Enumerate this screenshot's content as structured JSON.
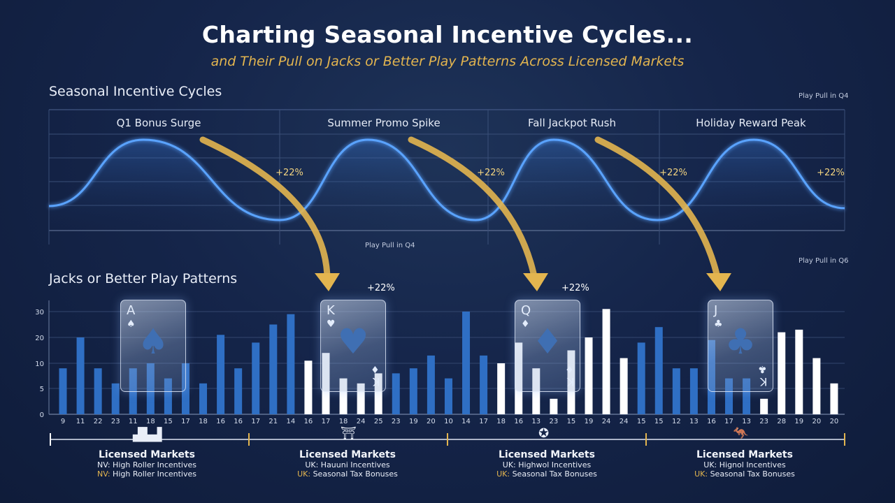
{
  "header": {
    "title": "Charting Seasonal Incentive Cycles...",
    "subtitle": "and Their Pull on Jacks or Better Play Patterns Across Licensed Markets"
  },
  "sections": {
    "top": "Seasonal Incentive Cycles",
    "bottom": "Jacks or Better Play Patterns"
  },
  "annotations": {
    "play_pull_q4_top_right": "Play Pull in Q4",
    "play_pull_q4_mid": "Play Pull in Q4",
    "play_pull_q6": "Play Pull in Q6"
  },
  "cycles": [
    {
      "label": "Q1 Bonus Surge",
      "pull": "+22%"
    },
    {
      "label": "Summer Promo Spike",
      "pull": "+22%"
    },
    {
      "label": "Fall Jackpot Rush",
      "pull": "+22%"
    },
    {
      "label": "Holiday Reward Peak",
      "pull": "+22%"
    }
  ],
  "bar_pulls": [
    "+22%",
    "+22%"
  ],
  "cards": [
    {
      "rank": "A",
      "suit": "♠",
      "rank_br": "",
      "suit_br": ""
    },
    {
      "rank": "K",
      "suit": "♥",
      "rank_br": "K",
      "suit_br": "♦"
    },
    {
      "rank": "Q",
      "suit": "♦",
      "rank_br": "K",
      "suit_br": "♦"
    },
    {
      "rank": "J",
      "suit": "♣",
      "rank_br": "K",
      "suit_br": "♣"
    }
  ],
  "markets": [
    {
      "title": "Licensed Markets",
      "line1": "NV: High Roller Incentives",
      "prefix2": "NV:",
      "line2": " High Roller Incentives",
      "icon": "city-skyline-icon",
      "glyph": "▟▙▟"
    },
    {
      "title": "Licensed Markets",
      "line1": "UK: Hauuni Incentives",
      "prefix2": "UK:",
      "line2": " Seasonal Tax Bonuses",
      "icon": "pagoda-icon",
      "glyph": "⛩"
    },
    {
      "title": "Licensed Markets",
      "line1": "UK: Highwol Incentives",
      "prefix2": "UK:",
      "line2": " Seasonal Tax Bonuses",
      "icon": "crest-icon",
      "glyph": "✪"
    },
    {
      "title": "Licensed Markets",
      "line1": "UK: Hignol Incentives",
      "prefix2": "UK:",
      "line2": " Seasonal Tax Bonuses",
      "icon": "kangaroo-icon",
      "glyph": "🦘"
    }
  ],
  "colors": {
    "wave": "#5aa3ff",
    "blue_bar": "#2f6fc4",
    "white_bar": "#ffffff",
    "arrow_gold": "#e3b54f",
    "accent": "#e3b54f"
  },
  "chart_data": [
    {
      "type": "line",
      "title": "Seasonal Incentive Cycles",
      "categories": [
        "Q1 Bonus Surge",
        "Summer Promo Spike",
        "Fall Jackpot Rush",
        "Holiday Reward Peak"
      ],
      "series": [
        {
          "name": "",
          "values": [
            1,
            1,
            1,
            1
          ]
        }
      ],
      "annotations": [
        "+22%",
        "+22%",
        "+22%",
        "+22%"
      ],
      "grid": true
    },
    {
      "type": "bar",
      "title": "Jacks or Better Play Patterns",
      "y_ticks": [
        0,
        5,
        10,
        20,
        30
      ],
      "ylim": [
        0,
        30
      ],
      "x_tick_labels": [
        "9",
        "11",
        "22",
        "23",
        "11",
        "18",
        "15",
        "17",
        "18",
        "16",
        "16",
        "17",
        "21",
        "14",
        "16",
        "17",
        "18",
        "24",
        "25",
        "23",
        "19",
        "20",
        "10",
        "14",
        "17",
        "18",
        "16",
        "13",
        "23",
        "15",
        "19",
        "24",
        "24",
        "15",
        "15",
        "12",
        "13",
        "16",
        "17",
        "13",
        "23",
        "28",
        "19",
        "20",
        "20"
      ],
      "values": [
        9,
        20,
        9,
        6,
        9,
        10,
        7,
        10,
        6,
        21,
        9,
        18,
        25,
        29,
        11,
        14,
        7,
        6,
        8,
        8,
        9,
        13,
        7,
        30,
        13,
        10,
        18,
        9,
        3,
        15,
        20,
        31,
        12,
        18,
        24,
        9,
        9,
        19,
        7,
        7,
        3,
        22,
        23,
        12,
        6
      ],
      "colors": [
        "blue",
        "blue",
        "blue",
        "blue",
        "blue",
        "blue",
        "blue",
        "blue",
        "blue",
        "blue",
        "blue",
        "blue",
        "blue",
        "blue",
        "white",
        "white",
        "white",
        "white",
        "white",
        "blue",
        "blue",
        "blue",
        "blue",
        "blue",
        "blue",
        "white",
        "white",
        "white",
        "white",
        "white",
        "white",
        "white",
        "white",
        "blue",
        "blue",
        "blue",
        "blue",
        "blue",
        "blue",
        "blue",
        "white",
        "white",
        "white",
        "white",
        "white"
      ],
      "grid": true
    }
  ]
}
